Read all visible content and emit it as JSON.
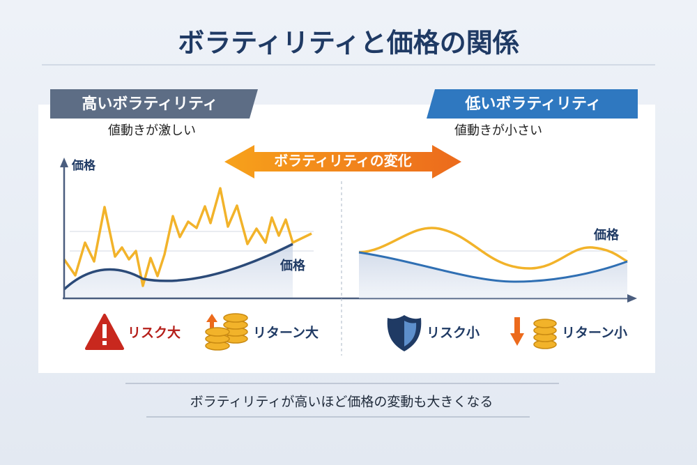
{
  "title": "ボラティリティと価格の関係",
  "left": {
    "header": "高いボラティリティ",
    "subtitle": "値動きが激しい",
    "axis_label": "価格",
    "line_label": "価格",
    "risk": "リスク大",
    "return": "リターン大"
  },
  "arrow": "ボラティリティの変化",
  "right": {
    "header": "低いボラティリティ",
    "subtitle": "値動きが小さい",
    "line_label": "価格",
    "risk": "リスク小",
    "return": "リターン小"
  },
  "footer": "ボラティリティが高いほど価格の変動も大きくなる"
}
